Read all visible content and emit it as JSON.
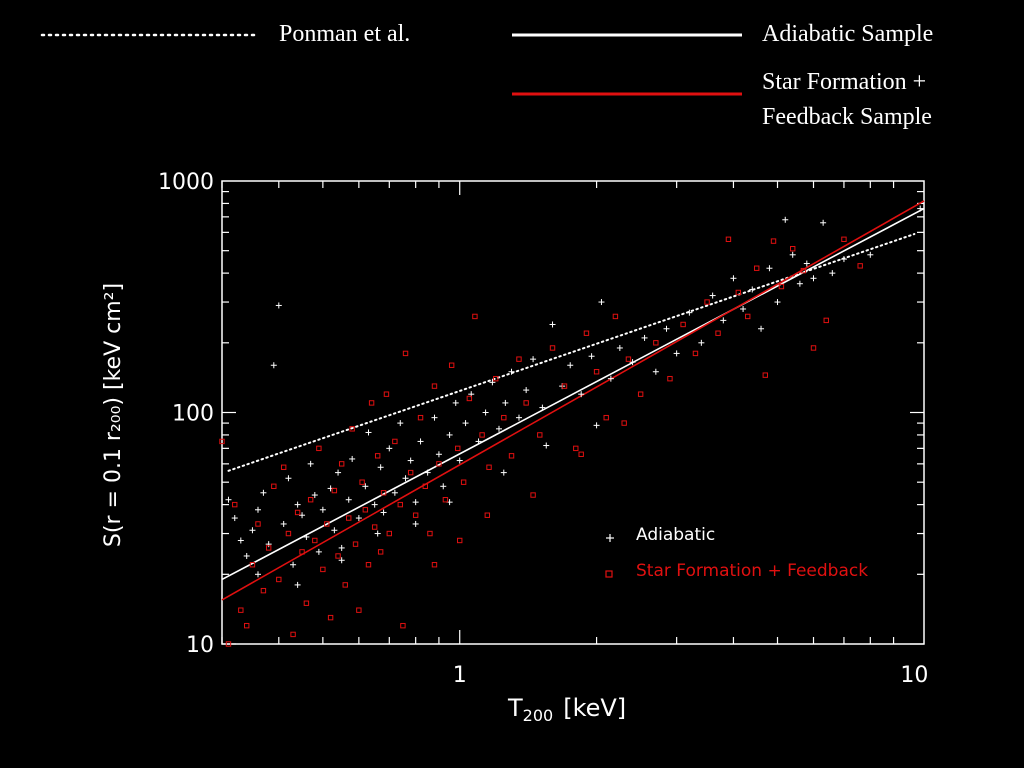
{
  "top_legend": {
    "ponman_label": "Ponman et al.",
    "adiabatic_label": "Adiabatic Sample",
    "sf_label_line1": "Star Formation +",
    "sf_label_line2": "Feedback Sample"
  },
  "colors": {
    "background": "#000000",
    "adiabatic": "#ffffff",
    "sf_feedback": "#e01010",
    "axes": "#ffffff"
  },
  "chart_data": {
    "type": "scatter",
    "xlabel_main": "T",
    "xlabel_sub": "200",
    "xlabel_unit": "[keV]",
    "ylabel": "S(r = 0.1  r₂₀₀) [keV cm²]",
    "xscale": "log",
    "yscale": "log",
    "xlim": [
      0.3,
      10.5
    ],
    "ylim": [
      10,
      1000
    ],
    "x_ticks": [
      {
        "value": 1,
        "label": "1"
      },
      {
        "value": 10,
        "label": "10"
      }
    ],
    "y_ticks": [
      {
        "value": 10,
        "label": "10"
      },
      {
        "value": 100,
        "label": "100"
      },
      {
        "value": 1000,
        "label": "1000"
      }
    ],
    "inner_legend": {
      "adiabatic": "Adiabatic",
      "sf": "Star Formation + Feedback"
    },
    "fit_lines": [
      {
        "name": "Ponman et al.",
        "style": "dotted",
        "color": "#ffffff",
        "x": [
          0.31,
          10.0
        ],
        "y": [
          56,
          590
        ]
      },
      {
        "name": "Adiabatic Sample",
        "style": "solid",
        "color": "#ffffff",
        "x": [
          0.3,
          10.5
        ],
        "y": [
          19,
          760
        ]
      },
      {
        "name": "Star Formation + Feedback Sample",
        "style": "solid",
        "color": "#e01010",
        "x": [
          0.3,
          10.5
        ],
        "y": [
          15.5,
          820
        ]
      }
    ],
    "series": [
      {
        "name": "Adiabatic",
        "marker": "plus",
        "color": "#ffffff",
        "points": [
          [
            0.31,
            42
          ],
          [
            0.32,
            35
          ],
          [
            0.33,
            28
          ],
          [
            0.34,
            24
          ],
          [
            0.35,
            31
          ],
          [
            0.36,
            38
          ],
          [
            0.37,
            45
          ],
          [
            0.38,
            27
          ],
          [
            0.39,
            160
          ],
          [
            0.4,
            290
          ],
          [
            0.41,
            33
          ],
          [
            0.42,
            52
          ],
          [
            0.43,
            22
          ],
          [
            0.44,
            40
          ],
          [
            0.45,
            36
          ],
          [
            0.46,
            29
          ],
          [
            0.47,
            60
          ],
          [
            0.48,
            44
          ],
          [
            0.49,
            25
          ],
          [
            0.5,
            38
          ],
          [
            0.52,
            47
          ],
          [
            0.53,
            31
          ],
          [
            0.54,
            55
          ],
          [
            0.55,
            26
          ],
          [
            0.57,
            42
          ],
          [
            0.58,
            63
          ],
          [
            0.6,
            35
          ],
          [
            0.62,
            48
          ],
          [
            0.63,
            82
          ],
          [
            0.65,
            40
          ],
          [
            0.67,
            58
          ],
          [
            0.68,
            37
          ],
          [
            0.7,
            70
          ],
          [
            0.72,
            45
          ],
          [
            0.74,
            90
          ],
          [
            0.76,
            52
          ],
          [
            0.78,
            62
          ],
          [
            0.8,
            41
          ],
          [
            0.82,
            75
          ],
          [
            0.85,
            55
          ],
          [
            0.88,
            95
          ],
          [
            0.9,
            66
          ],
          [
            0.92,
            48
          ],
          [
            0.95,
            80
          ],
          [
            0.98,
            110
          ],
          [
            1.0,
            62
          ],
          [
            1.03,
            90
          ],
          [
            1.06,
            120
          ],
          [
            1.1,
            75
          ],
          [
            1.14,
            100
          ],
          [
            1.18,
            135
          ],
          [
            1.22,
            85
          ],
          [
            1.26,
            110
          ],
          [
            1.3,
            150
          ],
          [
            1.35,
            95
          ],
          [
            1.4,
            125
          ],
          [
            1.45,
            170
          ],
          [
            1.52,
            105
          ],
          [
            1.6,
            240
          ],
          [
            1.68,
            130
          ],
          [
            1.75,
            160
          ],
          [
            1.85,
            120
          ],
          [
            1.95,
            175
          ],
          [
            2.05,
            300
          ],
          [
            2.15,
            140
          ],
          [
            2.25,
            190
          ],
          [
            2.4,
            165
          ],
          [
            2.55,
            210
          ],
          [
            2.7,
            150
          ],
          [
            2.85,
            230
          ],
          [
            3.0,
            180
          ],
          [
            3.2,
            270
          ],
          [
            3.4,
            200
          ],
          [
            3.6,
            320
          ],
          [
            3.8,
            250
          ],
          [
            4.0,
            380
          ],
          [
            4.2,
            280
          ],
          [
            4.4,
            340
          ],
          [
            4.6,
            230
          ],
          [
            4.8,
            420
          ],
          [
            5.0,
            300
          ],
          [
            5.2,
            680
          ],
          [
            5.4,
            480
          ],
          [
            5.6,
            360
          ],
          [
            5.8,
            440
          ],
          [
            6.0,
            380
          ],
          [
            6.3,
            660
          ],
          [
            6.6,
            400
          ],
          [
            7.0,
            460
          ],
          [
            8.0,
            480
          ],
          [
            10.3,
            760
          ],
          [
            0.36,
            20
          ],
          [
            0.44,
            18
          ],
          [
            0.55,
            23
          ],
          [
            0.66,
            30
          ],
          [
            0.8,
            33
          ],
          [
            0.95,
            41
          ],
          [
            1.25,
            55
          ],
          [
            1.55,
            72
          ],
          [
            2.0,
            88
          ]
        ]
      },
      {
        "name": "Star Formation + Feedback",
        "marker": "square",
        "color": "#e01010",
        "points": [
          [
            0.3,
            75
          ],
          [
            0.31,
            10
          ],
          [
            0.32,
            40
          ],
          [
            0.33,
            14
          ],
          [
            0.34,
            12
          ],
          [
            0.35,
            22
          ],
          [
            0.36,
            33
          ],
          [
            0.37,
            17
          ],
          [
            0.38,
            26
          ],
          [
            0.39,
            48
          ],
          [
            0.4,
            19
          ],
          [
            0.41,
            58
          ],
          [
            0.42,
            30
          ],
          [
            0.43,
            11
          ],
          [
            0.44,
            37
          ],
          [
            0.45,
            25
          ],
          [
            0.46,
            15
          ],
          [
            0.47,
            42
          ],
          [
            0.48,
            28
          ],
          [
            0.49,
            70
          ],
          [
            0.5,
            21
          ],
          [
            0.51,
            33
          ],
          [
            0.52,
            13
          ],
          [
            0.53,
            46
          ],
          [
            0.54,
            24
          ],
          [
            0.55,
            60
          ],
          [
            0.56,
            18
          ],
          [
            0.57,
            35
          ],
          [
            0.58,
            85
          ],
          [
            0.59,
            27
          ],
          [
            0.6,
            14
          ],
          [
            0.61,
            50
          ],
          [
            0.62,
            38
          ],
          [
            0.63,
            22
          ],
          [
            0.64,
            110
          ],
          [
            0.65,
            32
          ],
          [
            0.66,
            65
          ],
          [
            0.67,
            25
          ],
          [
            0.68,
            45
          ],
          [
            0.69,
            120
          ],
          [
            0.7,
            30
          ],
          [
            0.72,
            75
          ],
          [
            0.74,
            40
          ],
          [
            0.76,
            180
          ],
          [
            0.78,
            55
          ],
          [
            0.8,
            36
          ],
          [
            0.82,
            95
          ],
          [
            0.84,
            48
          ],
          [
            0.86,
            30
          ],
          [
            0.88,
            130
          ],
          [
            0.9,
            60
          ],
          [
            0.93,
            42
          ],
          [
            0.96,
            160
          ],
          [
            0.99,
            70
          ],
          [
            1.02,
            50
          ],
          [
            1.05,
            115
          ],
          [
            1.08,
            260
          ],
          [
            1.12,
            80
          ],
          [
            1.16,
            58
          ],
          [
            1.2,
            140
          ],
          [
            1.25,
            95
          ],
          [
            1.3,
            65
          ],
          [
            1.35,
            170
          ],
          [
            1.4,
            110
          ],
          [
            1.5,
            80
          ],
          [
            1.6,
            190
          ],
          [
            1.7,
            130
          ],
          [
            1.8,
            70
          ],
          [
            1.9,
            220
          ],
          [
            2.0,
            150
          ],
          [
            2.1,
            95
          ],
          [
            2.2,
            260
          ],
          [
            2.35,
            170
          ],
          [
            2.5,
            120
          ],
          [
            2.7,
            200
          ],
          [
            2.9,
            140
          ],
          [
            3.1,
            240
          ],
          [
            3.3,
            180
          ],
          [
            3.5,
            300
          ],
          [
            3.7,
            220
          ],
          [
            3.9,
            560
          ],
          [
            4.1,
            330
          ],
          [
            4.3,
            260
          ],
          [
            4.5,
            420
          ],
          [
            4.7,
            145
          ],
          [
            4.9,
            550
          ],
          [
            5.1,
            350
          ],
          [
            5.4,
            510
          ],
          [
            5.7,
            410
          ],
          [
            6.0,
            190
          ],
          [
            6.4,
            250
          ],
          [
            7.0,
            560
          ],
          [
            7.6,
            430
          ],
          [
            0.75,
            12
          ],
          [
            0.88,
            22
          ],
          [
            1.0,
            28
          ],
          [
            1.15,
            36
          ],
          [
            1.45,
            44
          ],
          [
            1.85,
            66
          ],
          [
            2.3,
            90
          ]
        ]
      }
    ]
  }
}
